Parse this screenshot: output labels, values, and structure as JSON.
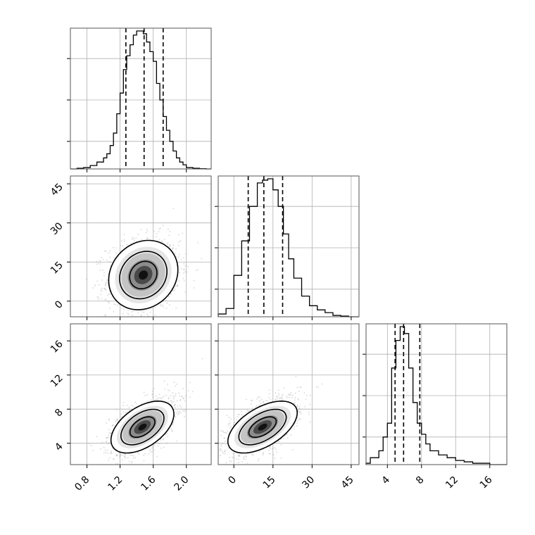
{
  "chart_data": {
    "type": "corner",
    "title": "",
    "colors": {
      "hist": "#000000",
      "grid": "#b0b0b0",
      "scatter": "#7f7f7f",
      "density_dark": "#000000"
    },
    "grid": true,
    "parameters": [
      {
        "index": 0,
        "label": "",
        "range": [
          0.6,
          2.3
        ],
        "ticks": [
          "0.8",
          "1.2",
          "1.6",
          "2.0"
        ],
        "tick_values": [
          0.8,
          1.2,
          1.6,
          2.0
        ],
        "quantiles": [
          1.27,
          1.49,
          1.72
        ],
        "median": 1.49
      },
      {
        "index": 1,
        "label": "",
        "range": [
          -6,
          48
        ],
        "ticks": [
          "0",
          "15",
          "30",
          "45"
        ],
        "tick_values": [
          0,
          15,
          30,
          45
        ],
        "quantiles": [
          5.5,
          11.5,
          18.7
        ],
        "median": 11.5
      },
      {
        "index": 2,
        "label": "",
        "range": [
          1.5,
          18
        ],
        "ticks": [
          "4",
          "8",
          "12",
          "16"
        ],
        "tick_values": [
          4,
          8,
          12,
          16
        ],
        "quantiles": [
          4.9,
          5.9,
          7.8
        ],
        "median": 5.9
      }
    ],
    "histograms": [
      {
        "param": 0,
        "bin_edges": [
          0.6,
          0.68,
          0.76,
          0.84,
          0.92,
          1.0,
          1.04,
          1.08,
          1.12,
          1.16,
          1.2,
          1.24,
          1.28,
          1.32,
          1.36,
          1.4,
          1.44,
          1.48,
          1.52,
          1.56,
          1.6,
          1.64,
          1.68,
          1.72,
          1.76,
          1.8,
          1.84,
          1.88,
          1.92,
          1.96,
          2.0,
          2.08,
          2.16,
          2.24,
          2.3
        ],
        "counts": [
          0,
          0.005,
          0.01,
          0.025,
          0.05,
          0.08,
          0.11,
          0.17,
          0.26,
          0.4,
          0.55,
          0.72,
          0.82,
          0.9,
          0.97,
          1.0,
          1.0,
          0.98,
          0.92,
          0.85,
          0.78,
          0.62,
          0.5,
          0.38,
          0.28,
          0.2,
          0.13,
          0.08,
          0.05,
          0.03,
          0.01,
          0.005,
          0.002,
          0
        ]
      },
      {
        "param": 1,
        "bin_edges": [
          -6,
          -3,
          0,
          3,
          6,
          9,
          11,
          13,
          15,
          17,
          19,
          21,
          23,
          26,
          29,
          32,
          35,
          38,
          41,
          44,
          48
        ],
        "counts": [
          0.02,
          0.06,
          0.3,
          0.55,
          0.8,
          0.97,
          0.99,
          1.0,
          0.92,
          0.8,
          0.6,
          0.42,
          0.28,
          0.15,
          0.08,
          0.05,
          0.03,
          0.01,
          0.005,
          0
        ]
      },
      {
        "param": 2,
        "bin_edges": [
          1.5,
          2,
          3,
          3.5,
          4,
          4.5,
          5,
          5.5,
          6,
          6.5,
          7,
          7.5,
          8,
          8.5,
          9,
          10,
          11,
          12,
          13,
          14,
          16,
          18
        ],
        "counts": [
          0.01,
          0.05,
          0.1,
          0.2,
          0.3,
          0.7,
          0.9,
          1.0,
          0.95,
          0.7,
          0.45,
          0.3,
          0.22,
          0.15,
          0.1,
          0.07,
          0.05,
          0.03,
          0.02,
          0.01,
          0
        ]
      }
    ],
    "pairs": [
      {
        "x": 0,
        "y": 1,
        "center": [
          1.48,
          10
        ],
        "sigma": [
          0.22,
          7.0
        ],
        "rho": 0.15
      },
      {
        "x": 0,
        "y": 2,
        "center": [
          1.47,
          5.9
        ],
        "sigma": [
          0.2,
          1.6
        ],
        "rho": 0.5
      },
      {
        "x": 1,
        "y": 2,
        "center": [
          11,
          5.9
        ],
        "sigma": [
          7.0,
          1.6
        ],
        "rho": 0.55
      }
    ]
  }
}
